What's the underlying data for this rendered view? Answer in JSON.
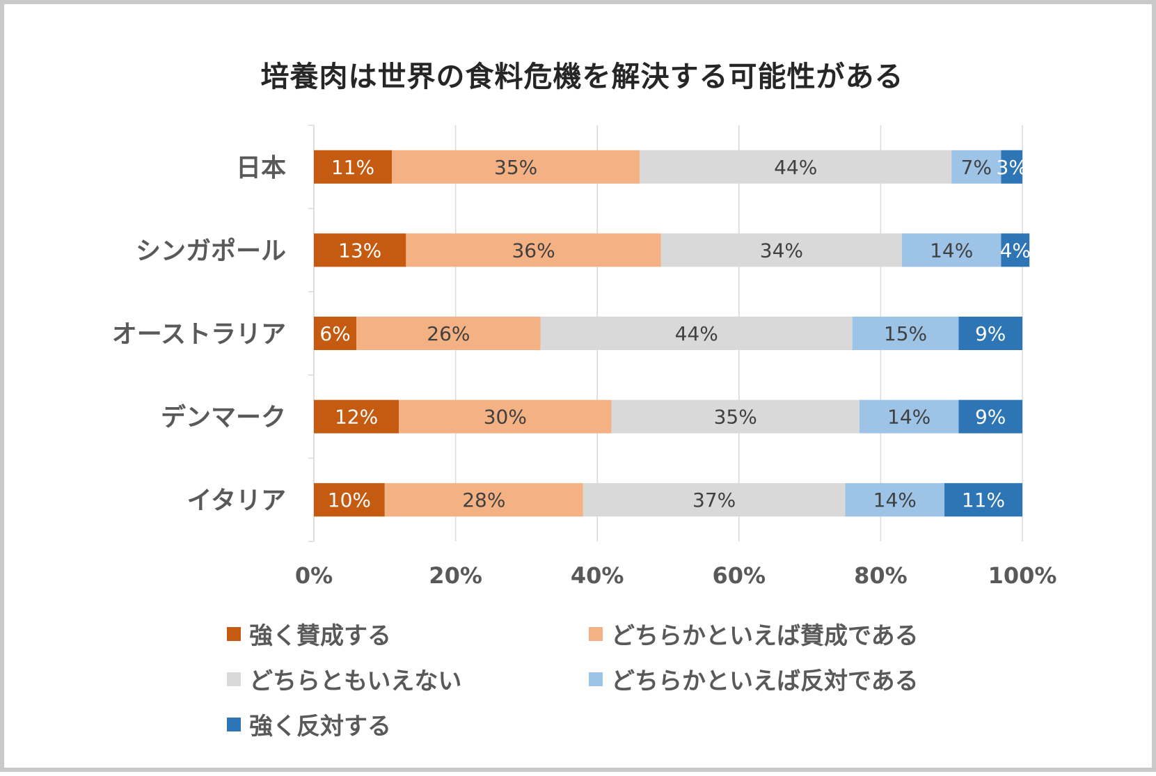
{
  "chart_data": {
    "type": "bar",
    "orientation": "horizontal",
    "stacked": "percent",
    "title": "培養肉は世界の食料危機を解決する可能性がある",
    "categories": [
      "日本",
      "シンガポール",
      "オーストラリア",
      "デンマーク",
      "イタリア"
    ],
    "x_ticks": [
      "0%",
      "20%",
      "40%",
      "60%",
      "80%",
      "100%"
    ],
    "xlim": [
      0,
      100
    ],
    "grid": "vertical",
    "legend_position": "bottom",
    "series": [
      {
        "name": "強く賛成する",
        "color": "#C55A11",
        "label_color": "#FFFFFF",
        "values": [
          11,
          13,
          6,
          12,
          10
        ],
        "labels": [
          "11%",
          "13%",
          "6%",
          "12%",
          "10%"
        ]
      },
      {
        "name": "どちらかといえば賛成である",
        "color": "#F4B183",
        "label_color": "#404040",
        "values": [
          35,
          36,
          26,
          30,
          28
        ],
        "labels": [
          "35%",
          "36%",
          "26%",
          "30%",
          "28%"
        ]
      },
      {
        "name": "どちらともいえない",
        "color": "#D9D9D9",
        "label_color": "#404040",
        "values": [
          44,
          34,
          44,
          35,
          37
        ],
        "labels": [
          "44%",
          "34%",
          "44%",
          "35%",
          "37%"
        ]
      },
      {
        "name": "どちらかといえば反対である",
        "color": "#9DC3E6",
        "label_color": "#404040",
        "values": [
          7,
          14,
          15,
          14,
          14
        ],
        "labels": [
          "7%",
          "14%",
          "15%",
          "14%",
          "14%"
        ]
      },
      {
        "name": "強く反対する",
        "color": "#2E75B6",
        "label_color": "#FFFFFF",
        "values": [
          3,
          4,
          9,
          9,
          11
        ],
        "labels": [
          "3%",
          "4%",
          "9%",
          "9%",
          "11%"
        ]
      }
    ]
  }
}
